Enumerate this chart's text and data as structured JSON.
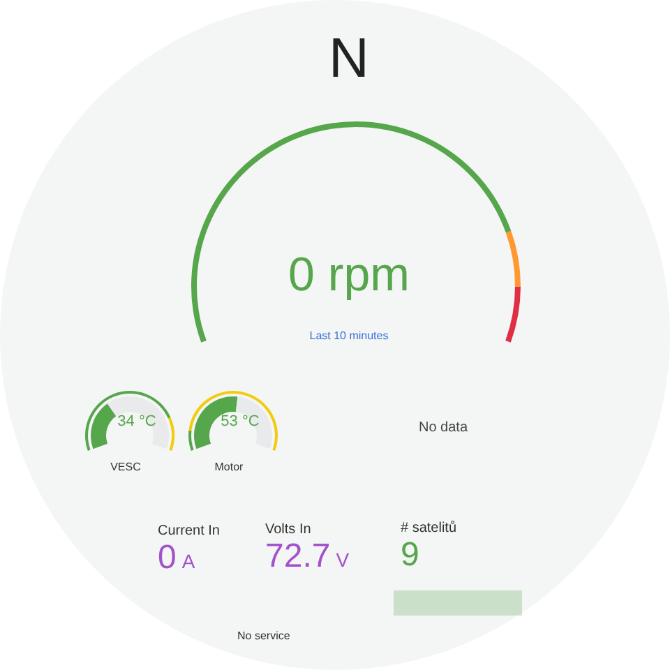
{
  "chart_data": [
    {
      "type": "donut",
      "title": "N",
      "categories": [
        null,
        null,
        null
      ],
      "values": [
        82,
        9,
        9
      ],
      "colors": [
        "#56a64b",
        "#ff9830",
        "#e02f44"
      ],
      "annotations": [
        "0 rpm",
        "Last 10 minutes"
      ]
    },
    {
      "type": "donut",
      "title": "VESC",
      "series": [
        {
          "values": [
            34,
            66
          ],
          "colors": [
            "#56a64b",
            "#e8eaeb"
          ]
        },
        {
          "values": [
            80,
            20
          ],
          "colors": [
            "#56a64b",
            "#f2cc0c"
          ]
        }
      ],
      "annotations": [
        "34 °C"
      ]
    },
    {
      "type": "donut",
      "title": "Motor",
      "series": [
        {
          "values": [
            53,
            47
          ],
          "colors": [
            "#56a64b",
            "#e8eaeb"
          ]
        },
        {
          "values": [
            12,
            88
          ],
          "colors": [
            "#56a64b",
            "#f2cc0c"
          ]
        }
      ],
      "annotations": [
        "53 °C"
      ]
    },
    {
      "type": "other",
      "annotations": [
        "No data"
      ]
    },
    {
      "type": "other",
      "title": "Current In",
      "annotations": [
        "0 A"
      ]
    },
    {
      "type": "other",
      "title": "Volts In",
      "annotations": [
        "72.7 V"
      ]
    },
    {
      "type": "other",
      "title": "# satelitů",
      "color": "#56a64b",
      "annotations": [
        "9",
        "No service"
      ]
    }
  ]
}
